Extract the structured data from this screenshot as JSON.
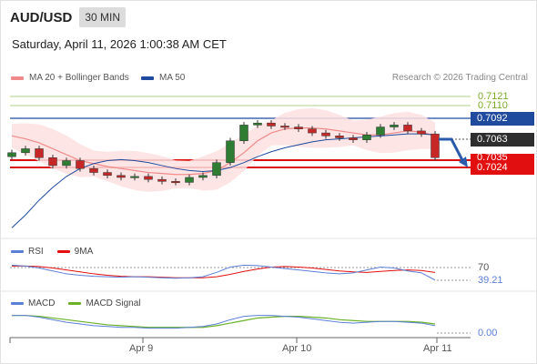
{
  "header": {
    "symbol": "AUD/USD",
    "timeframe": "30 MIN"
  },
  "datetime": "Saturday, April 11, 2026 1:00:38 AM CET",
  "legend": {
    "ma20_label": "MA 20 + Bollinger Bands",
    "ma50_label": "MA 50",
    "credit": "Research © 2026 Trading Central",
    "colors": {
      "ma20": "#f08a8a",
      "bands": "#fde1e1",
      "ma50": "#1f4a9e",
      "up": "#2e7d32",
      "down": "#c62828"
    }
  },
  "levels": {
    "r2": "0.7121",
    "r1": "0.7110",
    "pivot": "0.7092",
    "last": "0.7063",
    "s1": "0.7035",
    "s2": "0.7024"
  },
  "rsi": {
    "label": "RSI",
    "ma_label": "9MA",
    "level": "70",
    "value": "39.21",
    "colors": {
      "rsi": "#5b7fd6",
      "ma": "#e10f0f"
    }
  },
  "macd": {
    "label": "MACD",
    "signal_label": "MACD Signal",
    "value": "0.00",
    "colors": {
      "macd": "#5b7fd6",
      "signal": "#6bb22a"
    }
  },
  "x_axis": [
    "Apr 9",
    "Apr 10",
    "Apr 11"
  ],
  "chart_data": [
    {
      "type": "candlestick",
      "y_range": [
        0.6985,
        0.7135
      ],
      "series": [
        {
          "name": "MA 20 + Bollinger Bands",
          "values": [
            0.7085,
            0.7082,
            0.7078,
            0.7072,
            0.7066,
            0.706,
            0.7057,
            0.7054,
            0.7052,
            0.705,
            0.7048,
            0.7047,
            0.7046,
            0.7046,
            0.7047,
            0.705,
            0.7058,
            0.7068,
            0.708,
            0.7088,
            0.7092,
            0.7093,
            0.7093,
            0.7092,
            0.709,
            0.7088,
            0.7086,
            0.7086,
            0.7088,
            0.709,
            0.7089,
            0.7085
          ]
        },
        {
          "name": "MA 50",
          "values": [
            0.6992,
            0.7005,
            0.702,
            0.7033,
            0.7044,
            0.7052,
            0.7057,
            0.706,
            0.7061,
            0.706,
            0.7058,
            0.7055,
            0.7052,
            0.705,
            0.7049,
            0.705,
            0.7053,
            0.7058,
            0.7064,
            0.7069,
            0.7073,
            0.7076,
            0.7079,
            0.7081,
            0.7082,
            0.7083,
            0.7084,
            0.7085,
            0.7086,
            0.7087,
            0.7087,
            0.7086
          ]
        }
      ],
      "close": [
        0.7068,
        0.7072,
        0.7063,
        0.7055,
        0.706,
        0.7052,
        0.7048,
        0.7045,
        0.7043,
        0.7044,
        0.7041,
        0.7039,
        0.7038,
        0.7043,
        0.7045,
        0.7058,
        0.708,
        0.7096,
        0.7098,
        0.7095,
        0.7094,
        0.7092,
        0.7088,
        0.7085,
        0.7083,
        0.7081,
        0.7086,
        0.7094,
        0.7096,
        0.709,
        0.7087,
        0.7063
      ]
    },
    {
      "type": "line",
      "name": "RSI",
      "y_range": [
        20,
        80
      ],
      "series": [
        {
          "name": "RSI",
          "values": [
            70,
            68,
            64,
            58,
            52,
            49,
            47,
            46,
            45,
            46,
            45,
            44,
            43,
            44,
            46,
            55,
            66,
            70,
            69,
            66,
            63,
            60,
            57,
            54,
            52,
            54,
            60,
            66,
            64,
            58,
            54,
            39.21
          ]
        },
        {
          "name": "9MA",
          "values": [
            68,
            68,
            67,
            64,
            60,
            56,
            52,
            49,
            47,
            46,
            46,
            45,
            44,
            44,
            44,
            46,
            51,
            57,
            62,
            66,
            67,
            66,
            64,
            61,
            58,
            56,
            55,
            57,
            59,
            60,
            59,
            55
          ]
        }
      ]
    },
    {
      "type": "line",
      "name": "MACD",
      "y_range": [
        -0.0015,
        0.0015
      ],
      "series": [
        {
          "name": "MACD",
          "values": [
            0.001,
            0.001,
            0.0008,
            0.0005,
            0.0002,
            0.0,
            -0.0002,
            -0.0003,
            -0.0004,
            -0.0004,
            -0.0005,
            -0.0005,
            -0.0005,
            -0.0004,
            -0.0003,
            0.0,
            0.0005,
            0.0009,
            0.001,
            0.001,
            0.0009,
            0.0008,
            0.0006,
            0.0004,
            0.0002,
            0.0001,
            0.0002,
            0.0003,
            0.0003,
            0.0002,
            0.0001,
            -0.0002
          ]
        },
        {
          "name": "MACD Signal",
          "values": [
            0.001,
            0.001,
            0.0009,
            0.0007,
            0.0005,
            0.0003,
            0.0001,
            -0.0001,
            -0.0002,
            -0.0003,
            -0.0004,
            -0.0004,
            -0.0004,
            -0.0004,
            -0.0004,
            -0.0002,
            0.0001,
            0.0004,
            0.0007,
            0.0008,
            0.0009,
            0.0009,
            0.0008,
            0.0007,
            0.0005,
            0.0004,
            0.0003,
            0.0003,
            0.0003,
            0.0003,
            0.0002,
            0.0
          ]
        }
      ]
    }
  ]
}
